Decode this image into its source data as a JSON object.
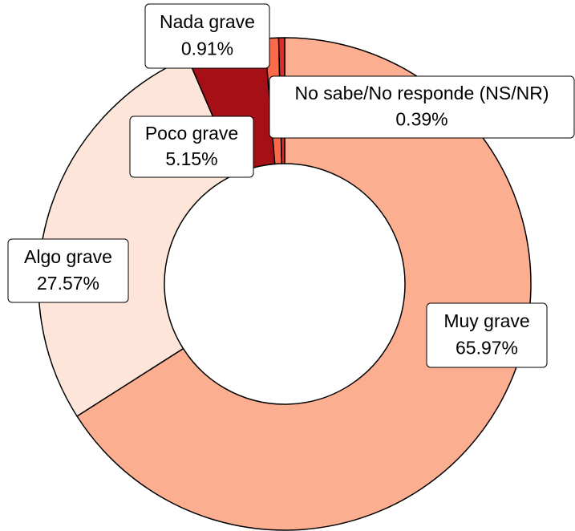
{
  "chart_data": {
    "type": "donut",
    "categories": [
      "Muy grave",
      "Algo grave",
      "Poco grave",
      "Nada grave",
      "No sabe/No responde (NS/NR)"
    ],
    "values": [
      65.97,
      27.57,
      5.15,
      0.91,
      0.39
    ],
    "value_labels": [
      "65.97%",
      "27.57%",
      "5.15%",
      "0.91%",
      "0.39%"
    ],
    "colors": [
      "#fcae91",
      "#fee5d9",
      "#a50f15",
      "#fb6a4a",
      "#de2d26"
    ]
  }
}
